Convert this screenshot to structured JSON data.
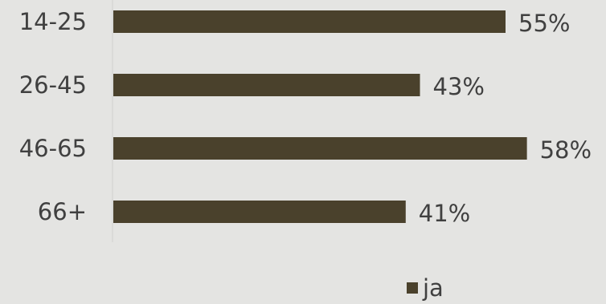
{
  "chart_data": {
    "type": "bar",
    "orientation": "horizontal",
    "categories": [
      "14-25",
      "26-45",
      "46-65",
      "66+"
    ],
    "series": [
      {
        "name": "ja",
        "values": [
          55,
          43,
          58,
          41
        ],
        "labels": [
          "55%",
          "43%",
          "58%",
          "41%"
        ]
      }
    ],
    "xlim": [
      0,
      60
    ],
    "grid": false,
    "legend": "bottom",
    "colors": {
      "bar": "#4a412c",
      "text": "#404040",
      "axis": "#cfcfcf",
      "background": "#e4e4e2"
    }
  }
}
